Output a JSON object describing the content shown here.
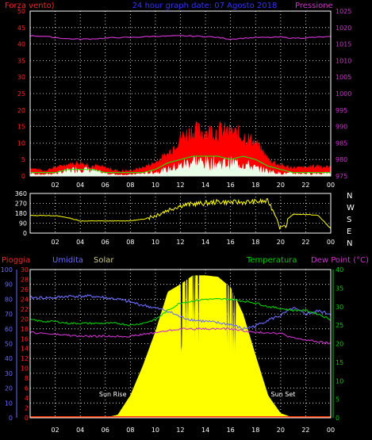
{
  "header": {
    "title": "24 hour graph date: 07 Agosto 2018",
    "left_label": "Forza vento)",
    "right_label": "Pressione"
  },
  "colors": {
    "background": "#000000",
    "grid": "#ffffff",
    "wind_speed": "#ff0000",
    "wind_gust": "#00ff00",
    "wind_avg": "#ffffff",
    "pressure": "#cc33cc",
    "direction": "#ffff00",
    "rain_axis": "#ff2222",
    "humidity": "#6b6bff",
    "solar": "#ffff00",
    "temperature": "#00cc00",
    "dew_point": "#cc33cc",
    "sun_text": "#ffffff"
  },
  "chart_data": [
    {
      "type": "area",
      "title": "24 hour graph date: 07 Agosto 2018",
      "ylabel_left": "Forza vento)",
      "ylabel_right": "Pressione",
      "y_left_ticks": [
        "50",
        "45",
        "40",
        "35",
        "30",
        "25",
        "20",
        "15",
        "10",
        "5",
        "0"
      ],
      "y_right_ticks": [
        "1025",
        "1020",
        "1015",
        "1010",
        "1005",
        "1000",
        "995",
        "990",
        "985",
        "980",
        "975"
      ],
      "ylim_left": [
        0,
        50
      ],
      "ylim_right": [
        975,
        1025
      ],
      "x_ticks": [
        "02",
        "04",
        "06",
        "08",
        "10",
        "12",
        "14",
        "16",
        "18",
        "20",
        "22",
        "00"
      ],
      "x_hours": [
        0,
        1,
        2,
        3,
        4,
        5,
        6,
        7,
        8,
        9,
        10,
        11,
        12,
        13,
        14,
        15,
        16,
        17,
        18,
        19,
        20,
        21,
        22,
        23,
        24
      ],
      "series": [
        {
          "name": "wind_gust_max",
          "values": [
            3,
            2,
            3,
            4,
            5,
            4,
            3,
            2,
            2,
            3,
            5,
            8,
            14,
            17,
            16,
            17,
            16,
            15,
            12,
            6,
            4,
            3,
            3,
            4,
            3
          ]
        },
        {
          "name": "wind_gust_avg",
          "values": [
            2,
            1,
            2,
            3,
            3,
            2,
            2,
            1,
            1,
            2,
            3,
            5,
            9,
            10,
            10,
            10,
            10,
            9,
            8,
            4,
            2,
            2,
            2,
            2,
            2
          ]
        },
        {
          "name": "wind_avg",
          "values": [
            1,
            0.5,
            1,
            2,
            3,
            2,
            1,
            0.5,
            0.5,
            1,
            1.5,
            2.5,
            4,
            6,
            5,
            5,
            5,
            5,
            3,
            2,
            1,
            1,
            1,
            1,
            1
          ]
        },
        {
          "name": "wind_line",
          "values": [
            1,
            1,
            1,
            2,
            2,
            2,
            1,
            1,
            1,
            1,
            2,
            4,
            5,
            6,
            6,
            6,
            5,
            6,
            5,
            3,
            2,
            1,
            1,
            1,
            1
          ]
        },
        {
          "name": "pressure",
          "values": [
            1017.5,
            1017.4,
            1017.0,
            1016.6,
            1016.5,
            1016.6,
            1016.8,
            1017.0,
            1017.0,
            1017.2,
            1017.4,
            1017.4,
            1017.5,
            1017.4,
            1017.3,
            1017.0,
            1016.5,
            1016.8,
            1017.0,
            1017.0,
            1017.1,
            1016.8,
            1016.9,
            1017.1,
            1017.2
          ]
        }
      ],
      "grid": true
    },
    {
      "type": "line",
      "y_left_ticks": [
        "360",
        "270",
        "180",
        "90",
        "0"
      ],
      "y_right_labels": [
        "N",
        "W",
        "S",
        "E",
        "N"
      ],
      "ylim": [
        0,
        360
      ],
      "x_ticks": [
        "02",
        "04",
        "06",
        "08",
        "10",
        "12",
        "14",
        "16",
        "18",
        "20",
        "22",
        "00"
      ],
      "x_hours": [
        0,
        1,
        2,
        3,
        4,
        5,
        6,
        7,
        8,
        9,
        10,
        11,
        12,
        13,
        14,
        15,
        16,
        17,
        18,
        19,
        20,
        21,
        22,
        23,
        24
      ],
      "series": [
        {
          "name": "wind_direction",
          "values": [
            160,
            160,
            158,
            140,
            110,
            110,
            110,
            110,
            112,
            125,
            160,
            210,
            250,
            265,
            270,
            285,
            280,
            280,
            285,
            290,
            80,
            170,
            170,
            160,
            40
          ]
        }
      ],
      "grid": true
    },
    {
      "type": "line",
      "labels": {
        "pioggia": "Pioggia",
        "umidita": "Umidita",
        "solar": "Solar",
        "temperatura": "Temperatura",
        "dew_point": "Dew Point (°C)"
      },
      "y_hum_ticks": [
        "100",
        "90",
        "80",
        "70",
        "60",
        "50",
        "40",
        "30",
        "20",
        "10",
        "0"
      ],
      "y_rain_ticks": [
        "30",
        "28",
        "26",
        "24",
        "22",
        "20",
        "18",
        "16",
        "14",
        "12",
        "10",
        "8",
        "6",
        "4",
        "2",
        "0"
      ],
      "y_temp_ticks": [
        "40",
        "35",
        "30",
        "25",
        "20",
        "15",
        "10",
        "5",
        "0"
      ],
      "ylim_hum": [
        0,
        100
      ],
      "ylim_temp": [
        0,
        40
      ],
      "x_ticks": [
        "02",
        "04",
        "06",
        "08",
        "10",
        "12",
        "14",
        "16",
        "18",
        "20",
        "22",
        "00"
      ],
      "x_hours": [
        0,
        1,
        2,
        3,
        4,
        5,
        6,
        7,
        8,
        9,
        10,
        11,
        12,
        13,
        14,
        15,
        16,
        17,
        18,
        19,
        20,
        21,
        22,
        23,
        24
      ],
      "series": [
        {
          "name": "humidity",
          "values": [
            81,
            81,
            81,
            82,
            82,
            82,
            81,
            80,
            78,
            76,
            74,
            72,
            68,
            66,
            65,
            64,
            63,
            60,
            62,
            66,
            69,
            74,
            70,
            72,
            70
          ]
        },
        {
          "name": "temperature",
          "values": [
            26.5,
            26,
            26,
            25.5,
            25.5,
            25.5,
            25.5,
            25.5,
            25,
            25.5,
            26.5,
            29,
            31,
            31.5,
            32,
            32,
            32,
            31.5,
            31,
            30,
            29.5,
            29,
            29,
            28,
            26.5
          ]
        },
        {
          "name": "dew_point",
          "values": [
            23,
            22.8,
            22.5,
            22.3,
            22,
            22,
            22,
            22,
            22,
            22.5,
            23,
            23.5,
            24,
            24,
            24,
            24,
            24,
            23.5,
            23,
            23,
            22.8,
            21.5,
            21,
            20.5,
            20
          ]
        },
        {
          "name": "solar",
          "values": [
            0,
            0,
            0,
            0,
            0,
            0,
            0,
            2,
            15,
            35,
            58,
            85,
            90,
            96,
            96,
            95,
            88,
            70,
            42,
            15,
            3,
            0,
            0,
            0,
            0
          ]
        },
        {
          "name": "rain",
          "values": [
            0,
            0,
            0,
            0,
            0,
            0,
            0,
            0,
            0,
            0,
            0,
            0,
            0,
            0,
            0,
            0,
            0,
            0,
            0,
            0,
            0,
            0,
            0,
            0,
            0
          ]
        }
      ],
      "annotations": [
        {
          "text": "Sun Rise",
          "x_hour": 6.6
        },
        {
          "text": "Sun Set",
          "x_hour": 20.2
        }
      ],
      "grid": true
    }
  ]
}
